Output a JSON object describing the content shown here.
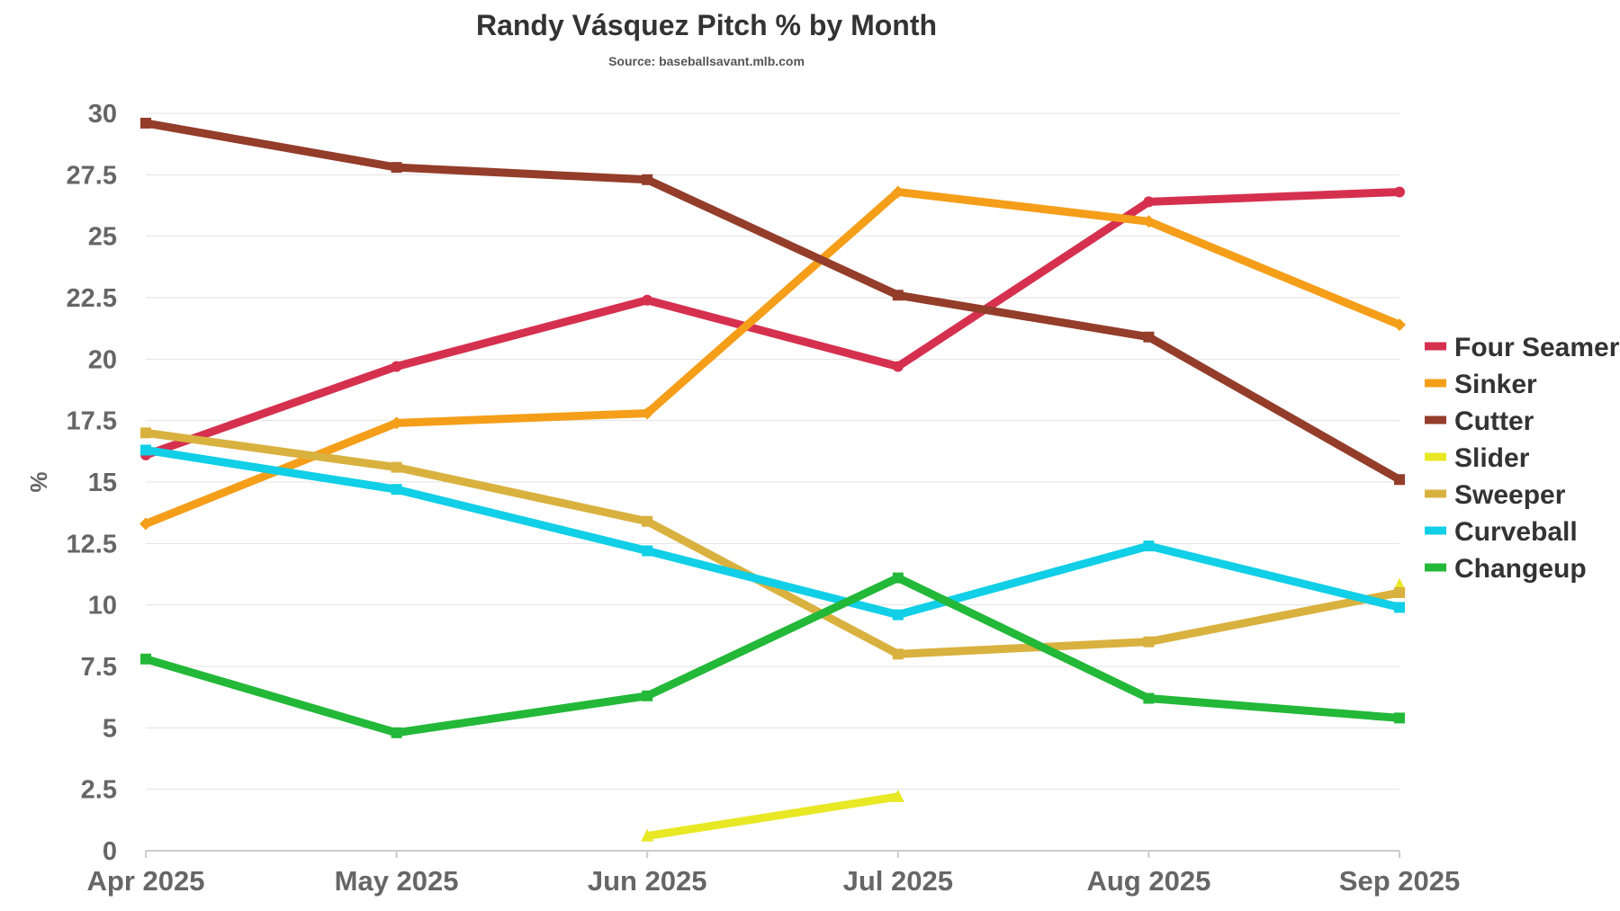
{
  "chart_data": {
    "type": "line",
    "title": "Randy Vásquez Pitch % by Month",
    "subtitle": "Source: baseballsavant.mlb.com",
    "xlabel": "",
    "ylabel": "%",
    "ylim": [
      0,
      30
    ],
    "y_ticks": [
      "0",
      "2.5",
      "5",
      "7.5",
      "10",
      "12.5",
      "15",
      "17.5",
      "20",
      "22.5",
      "25",
      "27.5",
      "30"
    ],
    "categories": [
      "Apr 2025",
      "May 2025",
      "Jun 2025",
      "Jul 2025",
      "Aug 2025",
      "Sep 2025"
    ],
    "legend_position": "right",
    "grid": true,
    "series": [
      {
        "name": "Four Seamer",
        "color": "#d6304f",
        "values": [
          16.1,
          19.7,
          22.4,
          19.7,
          26.4,
          26.8
        ]
      },
      {
        "name": "Sinker",
        "color": "#f59e19",
        "values": [
          13.3,
          17.4,
          17.8,
          26.8,
          25.6,
          21.4
        ]
      },
      {
        "name": "Cutter",
        "color": "#933d2a",
        "values": [
          29.6,
          27.8,
          27.3,
          22.6,
          20.9,
          15.1
        ]
      },
      {
        "name": "Slider",
        "color": "#e8e825",
        "values": [
          null,
          null,
          0.6,
          2.2,
          null,
          10.8
        ]
      },
      {
        "name": "Sweeper",
        "color": "#d9b13f",
        "values": [
          17.0,
          15.6,
          13.4,
          8.0,
          8.5,
          10.5
        ]
      },
      {
        "name": "Curveball",
        "color": "#10cfe6",
        "values": [
          16.3,
          14.7,
          12.2,
          9.6,
          12.4,
          9.9
        ]
      },
      {
        "name": "Changeup",
        "color": "#23b838",
        "values": [
          7.8,
          4.8,
          6.3,
          11.1,
          6.2,
          5.4
        ]
      }
    ]
  }
}
